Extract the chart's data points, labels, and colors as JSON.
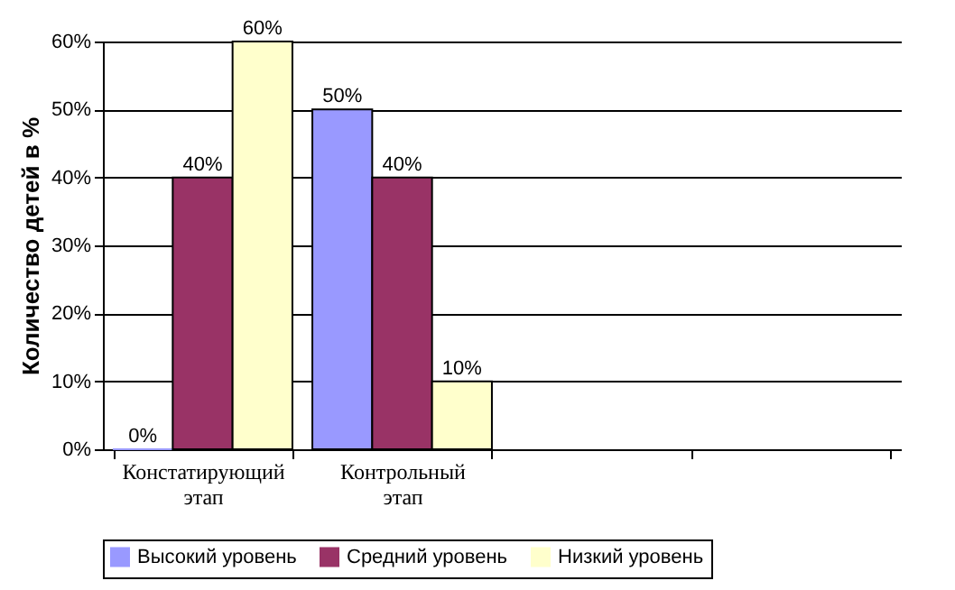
{
  "chart_data": {
    "type": "bar",
    "ylabel": "Количество детей в %",
    "categories": [
      "Констатирующий этап",
      "Контрольный этап",
      null,
      null
    ],
    "series": [
      {
        "name": "Высокий уровень",
        "color": "#9999ff",
        "values": [
          0,
          50,
          null,
          null
        ],
        "value_labels": [
          "0%",
          "50%",
          null,
          null
        ]
      },
      {
        "name": "Средний уровень",
        "color": "#993366",
        "values": [
          40,
          40,
          null,
          null
        ],
        "value_labels": [
          "40%",
          "40%",
          null,
          null
        ]
      },
      {
        "name": "Низкий уровень",
        "color": "#ffffcc",
        "values": [
          60,
          10,
          null,
          null
        ],
        "value_labels": [
          "60%",
          "10%",
          null,
          null
        ]
      }
    ],
    "ylim": [
      0,
      60
    ],
    "yticks": [
      {
        "value": 0,
        "label": "0%"
      },
      {
        "value": 10,
        "label": "10%"
      },
      {
        "value": 20,
        "label": "20%"
      },
      {
        "value": 30,
        "label": "30%"
      },
      {
        "value": 40,
        "label": "40%"
      },
      {
        "value": 50,
        "label": "50%"
      },
      {
        "value": 60,
        "label": "60%"
      }
    ],
    "grid": "y",
    "legend": "bottom"
  }
}
